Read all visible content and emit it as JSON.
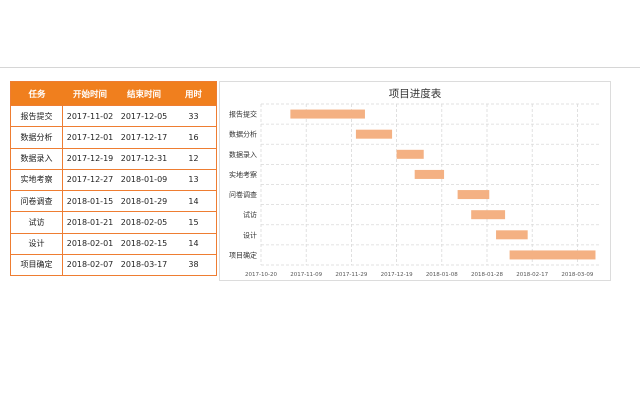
{
  "table": {
    "headers": [
      "任务",
      "开始时间",
      "结束时间",
      "用时"
    ],
    "rows": [
      {
        "task": "报告提交",
        "start": "2017-11-02",
        "end": "2017-12-05",
        "days": "33"
      },
      {
        "task": "数据分析",
        "start": "2017-12-01",
        "end": "2017-12-17",
        "days": "16"
      },
      {
        "task": "数据录入",
        "start": "2017-12-19",
        "end": "2017-12-31",
        "days": "12"
      },
      {
        "task": "实地考察",
        "start": "2017-12-27",
        "end": "2018-01-09",
        "days": "13"
      },
      {
        "task": "问卷调查",
        "start": "2018-01-15",
        "end": "2018-01-29",
        "days": "14"
      },
      {
        "task": "试访",
        "start": "2018-01-21",
        "end": "2018-02-05",
        "days": "15"
      },
      {
        "task": "设计",
        "start": "2018-02-01",
        "end": "2018-02-15",
        "days": "14"
      },
      {
        "task": "项目确定",
        "start": "2018-02-07",
        "end": "2018-03-17",
        "days": "38"
      }
    ]
  },
  "colors": {
    "accent": "#f07f1e",
    "bar": "#f4b183",
    "grid": "#d9d9d9"
  },
  "chart_data": {
    "type": "bar",
    "orientation": "horizontal",
    "stacked_gantt": true,
    "title": "项目进度表",
    "categories": [
      "报告提交",
      "数据分析",
      "数据录入",
      "实地考察",
      "问卷调查",
      "试访",
      "设计",
      "项目确定"
    ],
    "series": [
      {
        "values": [
          [
            "2017-11-02",
            "2017-12-05"
          ],
          [
            "2017-12-01",
            "2017-12-17"
          ],
          [
            "2017-12-19",
            "2017-12-31"
          ],
          [
            "2017-12-27",
            "2018-01-09"
          ],
          [
            "2018-01-15",
            "2018-01-29"
          ],
          [
            "2018-01-21",
            "2018-02-05"
          ],
          [
            "2018-02-01",
            "2018-02-15"
          ],
          [
            "2018-02-07",
            "2018-03-17"
          ]
        ]
      }
    ],
    "x_ticks": [
      "2017-10-20",
      "2017-11-09",
      "2017-11-29",
      "2017-12-19",
      "2018-01-08",
      "2018-01-28",
      "2018-02-17",
      "2018-03-09"
    ],
    "xlim": [
      "2017-10-20",
      "2018-03-19"
    ],
    "grid": true,
    "legend": "none"
  }
}
